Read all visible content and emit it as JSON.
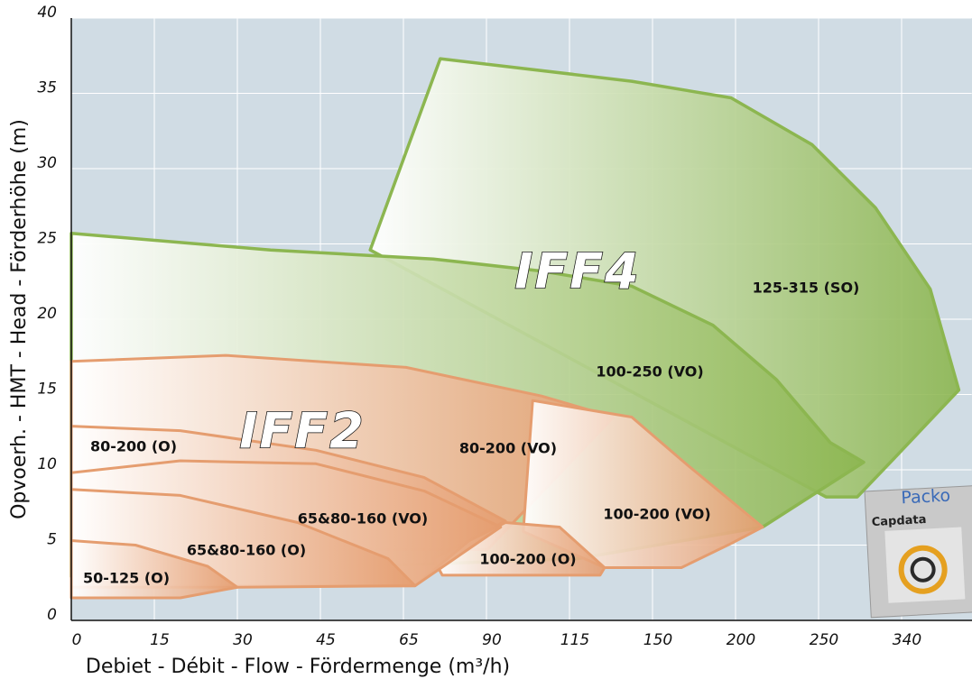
{
  "chart_data": {
    "type": "area",
    "xlabel": "Debiet - Débit - Flow - Fördermenge (m³/h)",
    "ylabel": "Opvoerh. - HMT - Head - Förderhöhe (m)",
    "xlim": [
      0,
      416
    ],
    "xticks": [
      0,
      15,
      30,
      45,
      65,
      90,
      115,
      150,
      200,
      250,
      340
    ],
    "xscale": "piecewise",
    "ylim": [
      0,
      40
    ],
    "yticks": [
      0,
      5,
      10,
      15,
      20,
      25,
      30,
      35,
      40
    ],
    "grid": true,
    "annotations": [
      "IFF4",
      "IFF2"
    ],
    "series": [
      {
        "name": "125-315 (SO)",
        "color": "#8cb650",
        "x": [
          57,
          76.1,
          141.2,
          197.3,
          246,
          311.6,
          371,
          402,
          331,
          292,
          258
        ],
        "y": [
          24.6,
          37.3,
          35.8,
          34.7,
          31.6,
          27.4,
          22.0,
          15.3,
          10.7,
          8.2,
          8.2
        ]
      },
      {
        "name": "100-250 (VO)",
        "color": "#8cb650",
        "x": [
          0,
          36,
          74,
          106.6,
          141.2,
          186.4,
          224.5,
          262.7,
          298.9,
          216.3,
          118.4,
          0
        ],
        "y": [
          25.7,
          24.6,
          24.0,
          23.2,
          22.2,
          19.6,
          16.0,
          11.8,
          10.5,
          6.2,
          4.1,
          2.9
        ]
      },
      {
        "name": "80-200 (VO)",
        "color": "#e59d6f",
        "x": [
          0,
          27.9,
          65.8,
          106.6,
          133.6,
          90.3,
          0
        ],
        "y": [
          17.2,
          17.6,
          16.8,
          14.9,
          13.5,
          4.7,
          4.7
        ]
      },
      {
        "name": "100-200 (VO)",
        "color": "#e59d6f",
        "x": [
          103.9,
          141.2,
          170.1,
          216.3,
          197.3,
          167.4,
          129.8,
          101.1
        ],
        "y": [
          14.6,
          13.5,
          10.4,
          6.2,
          5.1,
          3.5,
          3.5,
          5.9
        ]
      },
      {
        "name": "100-200 (O)",
        "color": "#e59d6f",
        "x": [
          74,
          95.7,
          112,
          129.8,
          127.9,
          76.7
        ],
        "y": [
          4.1,
          6.5,
          6.2,
          3.5,
          3.0,
          3.0
        ]
      },
      {
        "name": "80-200 (O)",
        "color": "#e59d6f",
        "x": [
          0,
          19.7,
          44.2,
          71.2,
          95.7,
          84.8,
          68.5,
          0
        ],
        "y": [
          12.9,
          12.6,
          11.3,
          9.5,
          6.6,
          5.3,
          2.3,
          2.3
        ]
      },
      {
        "name": "65&80-160 (VO)",
        "color": "#e59d6f",
        "x": [
          0,
          19.7,
          44.2,
          71.2,
          94.3,
          68.5,
          0
        ],
        "y": [
          9.8,
          10.6,
          10.4,
          8.6,
          6.2,
          2.3,
          2.3
        ]
      },
      {
        "name": "65&80-160 (O)",
        "color": "#e59d6f",
        "x": [
          0,
          19.7,
          40.9,
          61.3,
          68.5,
          30,
          0
        ],
        "y": [
          8.7,
          8.3,
          6.5,
          4.1,
          2.3,
          2.2,
          2.2
        ]
      },
      {
        "name": "50-125 (O)",
        "color": "#e59d6f",
        "x": [
          0,
          11.6,
          24.6,
          30,
          19.7,
          0
        ],
        "y": [
          5.3,
          5.0,
          3.6,
          2.2,
          1.5,
          1.5
        ]
      }
    ]
  },
  "logo": {
    "line1": "Packo",
    "line2": "Capdata"
  }
}
